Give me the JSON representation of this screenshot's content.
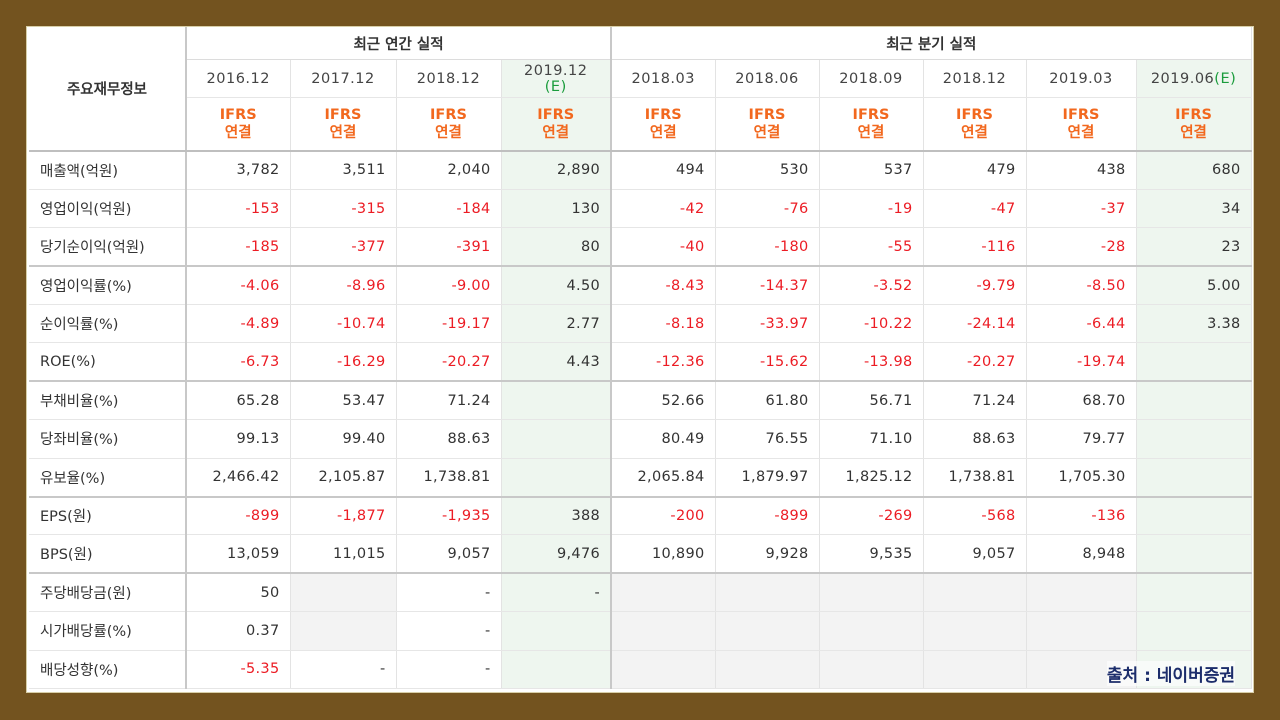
{
  "table_title": "주요재무정보",
  "groups": {
    "annual": "최근 연간 실적",
    "quarterly": "최근 분기 실적"
  },
  "columns": [
    {
      "date": "2016.12",
      "est": "",
      "type1": "IFRS",
      "type2": "연결"
    },
    {
      "date": "2017.12",
      "est": "",
      "type1": "IFRS",
      "type2": "연결"
    },
    {
      "date": "2018.12",
      "est": "",
      "type1": "IFRS",
      "type2": "연결"
    },
    {
      "date": "2019.12",
      "est": "(E)",
      "type1": "IFRS",
      "type2": "연결"
    },
    {
      "date": "2018.03",
      "est": "",
      "type1": "IFRS",
      "type2": "연결"
    },
    {
      "date": "2018.06",
      "est": "",
      "type1": "IFRS",
      "type2": "연결"
    },
    {
      "date": "2018.09",
      "est": "",
      "type1": "IFRS",
      "type2": "연결"
    },
    {
      "date": "2018.12",
      "est": "",
      "type1": "IFRS",
      "type2": "연결"
    },
    {
      "date": "2019.03",
      "est": "",
      "type1": "IFRS",
      "type2": "연결"
    },
    {
      "date": "2019.06",
      "est": "(E)",
      "type1": "IFRS",
      "type2": "연결"
    }
  ],
  "rows": [
    {
      "label": "매출액(억원)",
      "values": [
        "3,782",
        "3,511",
        "2,040",
        "2,890",
        "494",
        "530",
        "537",
        "479",
        "438",
        "680"
      ]
    },
    {
      "label": "영업이익(억원)",
      "values": [
        "-153",
        "-315",
        "-184",
        "130",
        "-42",
        "-76",
        "-19",
        "-47",
        "-37",
        "34"
      ]
    },
    {
      "label": "당기순이익(억원)",
      "values": [
        "-185",
        "-377",
        "-391",
        "80",
        "-40",
        "-180",
        "-55",
        "-116",
        "-28",
        "23"
      ]
    },
    {
      "label": "영업이익률(%)",
      "values": [
        "-4.06",
        "-8.96",
        "-9.00",
        "4.50",
        "-8.43",
        "-14.37",
        "-3.52",
        "-9.79",
        "-8.50",
        "5.00"
      ]
    },
    {
      "label": "순이익률(%)",
      "values": [
        "-4.89",
        "-10.74",
        "-19.17",
        "2.77",
        "-8.18",
        "-33.97",
        "-10.22",
        "-24.14",
        "-6.44",
        "3.38"
      ]
    },
    {
      "label": "ROE(%)",
      "values": [
        "-6.73",
        "-16.29",
        "-20.27",
        "4.43",
        "-12.36",
        "-15.62",
        "-13.98",
        "-20.27",
        "-19.74",
        ""
      ]
    },
    {
      "label": "부채비율(%)",
      "values": [
        "65.28",
        "53.47",
        "71.24",
        "",
        "52.66",
        "61.80",
        "56.71",
        "71.24",
        "68.70",
        ""
      ]
    },
    {
      "label": "당좌비율(%)",
      "values": [
        "99.13",
        "99.40",
        "88.63",
        "",
        "80.49",
        "76.55",
        "71.10",
        "88.63",
        "79.77",
        ""
      ]
    },
    {
      "label": "유보율(%)",
      "values": [
        "2,466.42",
        "2,105.87",
        "1,738.81",
        "",
        "2,065.84",
        "1,879.97",
        "1,825.12",
        "1,738.81",
        "1,705.30",
        ""
      ]
    },
    {
      "label": "EPS(원)",
      "values": [
        "-899",
        "-1,877",
        "-1,935",
        "388",
        "-200",
        "-899",
        "-269",
        "-568",
        "-136",
        ""
      ]
    },
    {
      "label": "BPS(원)",
      "values": [
        "13,059",
        "11,015",
        "9,057",
        "9,476",
        "10,890",
        "9,928",
        "9,535",
        "9,057",
        "8,948",
        ""
      ]
    },
    {
      "label": "주당배당금(원)",
      "values": [
        "50",
        "",
        "-",
        "-",
        "",
        "",
        "",
        "",
        "",
        ""
      ]
    },
    {
      "label": "시가배당률(%)",
      "values": [
        "0.37",
        "",
        "-",
        "",
        "",
        "",
        "",
        "",
        "",
        ""
      ]
    },
    {
      "label": "배당성향(%)",
      "values": [
        "-5.35",
        "-",
        "-",
        "",
        "",
        "",
        "",
        "",
        "",
        ""
      ]
    }
  ],
  "source_text": "출처 : 네이버증권",
  "colors": {
    "negative": "#ec1c24",
    "ifrs": "#f2681e",
    "estimate_bg": "#eef6ef",
    "frame": "#73531f",
    "estimate_mark": "#1a9c3c"
  }
}
